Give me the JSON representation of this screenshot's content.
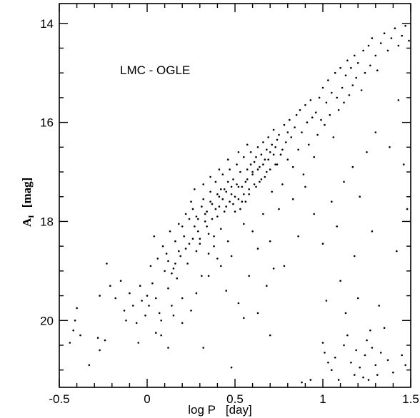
{
  "chart_data": {
    "type": "scatter",
    "title": "",
    "annotation": "LMC - OGLE",
    "xlabel": "log P   [day]",
    "ylabel_main": "A",
    "ylabel_sub": "I",
    "ylabel_unit": "[mag]",
    "xlim": [
      -0.5,
      1.5
    ],
    "ylim": [
      21.35,
      13.6
    ],
    "y_inverted": true,
    "x_ticks": [
      -0.5,
      0,
      0.5,
      1,
      1.5
    ],
    "x_tick_labels": [
      "-0.5",
      "0",
      "0.5",
      "1",
      "1.5"
    ],
    "y_ticks": [
      14,
      16,
      18,
      20
    ],
    "y_tick_labels": [
      "14",
      "16",
      "18",
      "20"
    ],
    "grid": false,
    "marker_color": "#000000",
    "points": [
      [
        -0.44,
        20.45
      ],
      [
        -0.42,
        20.2
      ],
      [
        -0.41,
        20.0
      ],
      [
        -0.4,
        19.75
      ],
      [
        -0.38,
        20.3
      ],
      [
        -0.33,
        20.9
      ],
      [
        -0.28,
        20.35
      ],
      [
        -0.27,
        20.6
      ],
      [
        -0.27,
        19.5
      ],
      [
        -0.24,
        20.4
      ],
      [
        -0.23,
        18.85
      ],
      [
        -0.21,
        19.3
      ],
      [
        -0.18,
        19.55
      ],
      [
        -0.15,
        19.2
      ],
      [
        -0.13,
        19.8
      ],
      [
        -0.12,
        20.0
      ],
      [
        -0.1,
        19.45
      ],
      [
        -0.08,
        19.7
      ],
      [
        -0.06,
        20.05
      ],
      [
        -0.04,
        19.3
      ],
      [
        -0.03,
        19.6
      ],
      [
        -0.01,
        19.9
      ],
      [
        0.0,
        19.5
      ],
      [
        0.01,
        19.7
      ],
      [
        0.02,
        18.9
      ],
      [
        0.03,
        19.25
      ],
      [
        0.04,
        18.3
      ],
      [
        0.05,
        19.55
      ],
      [
        0.06,
        18.75
      ],
      [
        0.07,
        19.85
      ],
      [
        0.08,
        20.3
      ],
      [
        0.09,
        18.5
      ],
      [
        0.1,
        19.0
      ],
      [
        0.11,
        18.65
      ],
      [
        0.12,
        19.35
      ],
      [
        0.13,
        18.2
      ],
      [
        0.14,
        19.7
      ],
      [
        0.15,
        18.95
      ],
      [
        0.16,
        18.4
      ],
      [
        0.17,
        19.15
      ],
      [
        0.18,
        18.05
      ],
      [
        0.19,
        18.7
      ],
      [
        0.2,
        19.55
      ],
      [
        0.21,
        18.3
      ],
      [
        0.22,
        17.85
      ],
      [
        0.23,
        18.85
      ],
      [
        0.24,
        18.45
      ],
      [
        0.25,
        19.8
      ],
      [
        0.26,
        17.75
      ],
      [
        0.27,
        18.1
      ],
      [
        0.28,
        18.6
      ],
      [
        0.29,
        17.95
      ],
      [
        0.3,
        18.35
      ],
      [
        0.31,
        19.1
      ],
      [
        0.32,
        17.55
      ],
      [
        0.33,
        18.0
      ],
      [
        0.34,
        17.8
      ],
      [
        0.35,
        18.25
      ],
      [
        0.36,
        17.4
      ],
      [
        0.37,
        17.65
      ],
      [
        0.38,
        18.5
      ],
      [
        0.39,
        17.2
      ],
      [
        0.4,
        17.9
      ],
      [
        0.41,
        17.5
      ],
      [
        0.42,
        18.15
      ],
      [
        0.43,
        17.05
      ],
      [
        0.44,
        17.35
      ],
      [
        0.45,
        17.7
      ],
      [
        0.46,
        18.4
      ],
      [
        0.47,
        16.95
      ],
      [
        0.48,
        17.45
      ],
      [
        0.49,
        17.15
      ],
      [
        0.5,
        17.8
      ],
      [
        0.51,
        16.85
      ],
      [
        0.52,
        17.3
      ],
      [
        0.53,
        17.0
      ],
      [
        0.54,
        17.6
      ],
      [
        0.55,
        16.7
      ],
      [
        0.56,
        17.2
      ],
      [
        0.57,
        16.95
      ],
      [
        0.58,
        17.45
      ],
      [
        0.59,
        16.6
      ],
      [
        0.6,
        17.05
      ],
      [
        0.61,
        16.8
      ],
      [
        0.62,
        17.3
      ],
      [
        0.63,
        16.5
      ],
      [
        0.64,
        16.9
      ],
      [
        0.65,
        17.15
      ],
      [
        0.66,
        16.4
      ],
      [
        0.67,
        16.75
      ],
      [
        0.68,
        17.0
      ],
      [
        0.69,
        16.3
      ],
      [
        0.7,
        16.6
      ],
      [
        0.71,
        17.4
      ],
      [
        0.72,
        16.15
      ],
      [
        0.73,
        16.5
      ],
      [
        0.74,
        16.85
      ],
      [
        0.75,
        16.25
      ],
      [
        0.76,
        16.65
      ],
      [
        0.77,
        17.25
      ],
      [
        0.78,
        16.05
      ],
      [
        0.79,
        16.4
      ],
      [
        0.8,
        16.75
      ],
      [
        0.81,
        15.95
      ],
      [
        0.82,
        16.3
      ],
      [
        0.83,
        16.9
      ],
      [
        0.84,
        16.1
      ],
      [
        0.85,
        15.85
      ],
      [
        0.86,
        16.55
      ],
      [
        0.87,
        15.75
      ],
      [
        0.88,
        16.2
      ],
      [
        0.89,
        17.05
      ],
      [
        0.9,
        15.65
      ],
      [
        0.91,
        16.0
      ],
      [
        0.92,
        16.45
      ],
      [
        0.93,
        15.55
      ],
      [
        0.94,
        15.9
      ],
      [
        0.95,
        16.7
      ],
      [
        0.96,
        15.8
      ],
      [
        0.97,
        16.25
      ],
      [
        0.98,
        15.5
      ],
      [
        0.99,
        15.95
      ],
      [
        1.0,
        15.3
      ],
      [
        1.01,
        16.05
      ],
      [
        1.02,
        15.6
      ],
      [
        1.03,
        15.15
      ],
      [
        1.04,
        15.85
      ],
      [
        1.05,
        15.4
      ],
      [
        1.06,
        16.3
      ],
      [
        1.07,
        15.0
      ],
      [
        1.08,
        15.5
      ],
      [
        1.09,
        15.75
      ],
      [
        1.1,
        14.9
      ],
      [
        1.11,
        15.3
      ],
      [
        1.12,
        15.6
      ],
      [
        1.13,
        15.05
      ],
      [
        1.14,
        14.75
      ],
      [
        1.15,
        15.45
      ],
      [
        1.16,
        14.9
      ],
      [
        1.17,
        15.25
      ],
      [
        1.18,
        14.65
      ],
      [
        1.19,
        15.1
      ],
      [
        1.2,
        14.8
      ],
      [
        1.22,
        15.35
      ],
      [
        1.23,
        14.55
      ],
      [
        1.24,
        15.0
      ],
      [
        1.26,
        14.45
      ],
      [
        1.27,
        14.85
      ],
      [
        1.28,
        14.3
      ],
      [
        1.3,
        14.65
      ],
      [
        1.31,
        14.95
      ],
      [
        1.33,
        14.4
      ],
      [
        1.35,
        14.2
      ],
      [
        1.37,
        14.55
      ],
      [
        1.39,
        14.3
      ],
      [
        1.41,
        14.1
      ],
      [
        1.43,
        14.45
      ],
      [
        1.45,
        14.25
      ],
      [
        1.47,
        14.05
      ],
      [
        1.49,
        14.35
      ],
      [
        0.28,
        17.9
      ],
      [
        0.29,
        18.2
      ],
      [
        0.31,
        17.7
      ],
      [
        0.33,
        17.85
      ],
      [
        0.34,
        18.1
      ],
      [
        0.36,
        17.6
      ],
      [
        0.37,
        17.95
      ],
      [
        0.39,
        17.75
      ],
      [
        0.4,
        17.45
      ],
      [
        0.41,
        17.7
      ],
      [
        0.43,
        17.55
      ],
      [
        0.44,
        17.8
      ],
      [
        0.45,
        17.4
      ],
      [
        0.47,
        17.6
      ],
      [
        0.48,
        17.3
      ],
      [
        0.5,
        17.5
      ],
      [
        0.51,
        17.25
      ],
      [
        0.52,
        17.55
      ],
      [
        0.54,
        17.3
      ],
      [
        0.55,
        17.45
      ],
      [
        0.57,
        17.15
      ],
      [
        0.58,
        17.35
      ],
      [
        0.6,
        17.0
      ],
      [
        0.61,
        17.25
      ],
      [
        0.63,
        16.95
      ],
      [
        0.64,
        17.2
      ],
      [
        0.66,
        16.85
      ],
      [
        0.67,
        17.1
      ],
      [
        0.69,
        16.75
      ],
      [
        0.7,
        16.95
      ],
      [
        0.72,
        16.65
      ],
      [
        0.73,
        16.85
      ],
      [
        0.3,
        18.45
      ],
      [
        0.35,
        18.65
      ],
      [
        0.38,
        18.3
      ],
      [
        0.42,
        17.35
      ],
      [
        0.46,
        17.2
      ],
      [
        0.49,
        17.65
      ],
      [
        0.53,
        17.75
      ],
      [
        0.56,
        17.6
      ],
      [
        0.59,
        16.85
      ],
      [
        0.62,
        16.7
      ],
      [
        0.65,
        16.65
      ],
      [
        0.68,
        16.55
      ],
      [
        0.71,
        16.45
      ],
      [
        0.74,
        16.35
      ],
      [
        0.77,
        16.55
      ],
      [
        0.8,
        16.2
      ],
      [
        0.25,
        17.6
      ],
      [
        0.27,
        17.35
      ],
      [
        0.32,
        17.25
      ],
      [
        0.36,
        17.1
      ],
      [
        0.41,
        16.95
      ],
      [
        0.46,
        16.75
      ],
      [
        0.52,
        16.6
      ],
      [
        0.57,
        16.45
      ],
      [
        0.2,
        18.1
      ],
      [
        0.22,
        18.55
      ],
      [
        0.24,
        17.95
      ],
      [
        0.26,
        18.35
      ],
      [
        0.18,
        18.6
      ],
      [
        0.16,
        18.85
      ],
      [
        0.14,
        19.05
      ],
      [
        0.12,
        18.8
      ],
      [
        0.55,
        18.05
      ],
      [
        0.6,
        18.2
      ],
      [
        0.66,
        17.85
      ],
      [
        0.7,
        18.4
      ],
      [
        0.75,
        17.75
      ],
      [
        0.78,
        18.9
      ],
      [
        0.83,
        17.55
      ],
      [
        0.86,
        18.3
      ],
      [
        0.42,
        18.9
      ],
      [
        0.48,
        18.7
      ],
      [
        0.58,
        19.1
      ],
      [
        0.63,
        18.55
      ],
      [
        0.68,
        19.3
      ],
      [
        0.72,
        18.95
      ],
      [
        0.45,
        19.4
      ],
      [
        0.52,
        19.65
      ],
      [
        0.9,
        17.3
      ],
      [
        0.95,
        17.85
      ],
      [
        1.0,
        18.45
      ],
      [
        1.05,
        17.6
      ],
      [
        1.08,
        18.1
      ],
      [
        1.12,
        17.2
      ],
      [
        1.17,
        16.9
      ],
      [
        1.21,
        17.5
      ],
      [
        1.25,
        16.6
      ],
      [
        1.3,
        16.2
      ],
      [
        1.38,
        16.5
      ],
      [
        1.43,
        15.55
      ],
      [
        1.28,
        18.2
      ],
      [
        1.18,
        18.7
      ],
      [
        1.1,
        19.2
      ],
      [
        1.02,
        19.6
      ],
      [
        1.0,
        20.45
      ],
      [
        1.01,
        20.65
      ],
      [
        1.03,
        20.85
      ],
      [
        1.05,
        21.0
      ],
      [
        1.07,
        20.75
      ],
      [
        1.09,
        21.2
      ],
      [
        1.12,
        20.5
      ],
      [
        1.14,
        20.3
      ],
      [
        1.16,
        20.85
      ],
      [
        1.18,
        21.1
      ],
      [
        1.19,
        20.6
      ],
      [
        1.21,
        20.95
      ],
      [
        1.23,
        21.15
      ],
      [
        1.24,
        20.7
      ],
      [
        1.25,
        20.4
      ],
      [
        1.26,
        21.2
      ],
      [
        1.27,
        20.2
      ],
      [
        1.28,
        20.55
      ],
      [
        1.3,
        20.9
      ],
      [
        1.31,
        21.1
      ],
      [
        1.33,
        20.65
      ],
      [
        1.35,
        20.15
      ],
      [
        1.37,
        20.8
      ],
      [
        1.4,
        21.05
      ],
      [
        1.45,
        20.7
      ],
      [
        1.47,
        20.9
      ],
      [
        1.13,
        19.85
      ],
      [
        1.2,
        19.55
      ],
      [
        1.32,
        19.7
      ],
      [
        1.42,
        18.6
      ],
      [
        1.48,
        17.75
      ],
      [
        1.46,
        16.85
      ],
      [
        0.88,
        21.25
      ],
      [
        0.93,
        21.2
      ],
      [
        0.48,
        20.95
      ],
      [
        0.55,
        19.95
      ],
      [
        0.63,
        19.85
      ],
      [
        0.7,
        20.3
      ],
      [
        0.32,
        20.55
      ],
      [
        0.2,
        20.05
      ],
      [
        0.05,
        20.25
      ],
      [
        0.08,
        20.0
      ],
      [
        -0.05,
        20.45
      ],
      [
        0.12,
        20.55
      ],
      [
        0.28,
        19.45
      ],
      [
        0.35,
        19.1
      ],
      [
        0.4,
        18.75
      ],
      [
        0.15,
        19.9
      ]
    ]
  }
}
